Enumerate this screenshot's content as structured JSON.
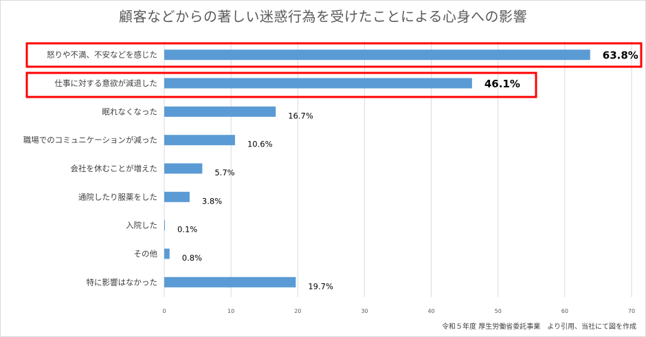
{
  "chart_data": {
    "type": "bar",
    "orientation": "horizontal",
    "title": "顧客などからの著しい迷惑行為を受けたことによる心身への影響",
    "categories": [
      "怒りや不満、不安などを感じた",
      "仕事に対する意欲が減退した",
      "眠れなくなった",
      "職場でのコミュニケーションが減った",
      "会社を休むことが増えた",
      "通院したり服薬をした",
      "入院した",
      "その他",
      "特に影響はなかった"
    ],
    "values": [
      63.8,
      46.1,
      16.7,
      10.6,
      5.7,
      3.8,
      0.1,
      0.8,
      19.7
    ],
    "data_labels": [
      "63.8%",
      "46.1%",
      "16.7%",
      "10.6%",
      "5.7%",
      "3.8%",
      "0.1%",
      "0.8%",
      "19.7%"
    ],
    "highlighted": [
      0,
      1
    ],
    "xlim": [
      0,
      70
    ],
    "x_ticks": [
      0,
      10,
      20,
      30,
      40,
      50,
      60,
      70
    ],
    "grid": "vertical",
    "bar_color": "#5B9BD5",
    "highlight_color": "#FF0000"
  },
  "source_note": "令和５年度 厚生労働省委託事業　より引用、当社にて図を作成"
}
